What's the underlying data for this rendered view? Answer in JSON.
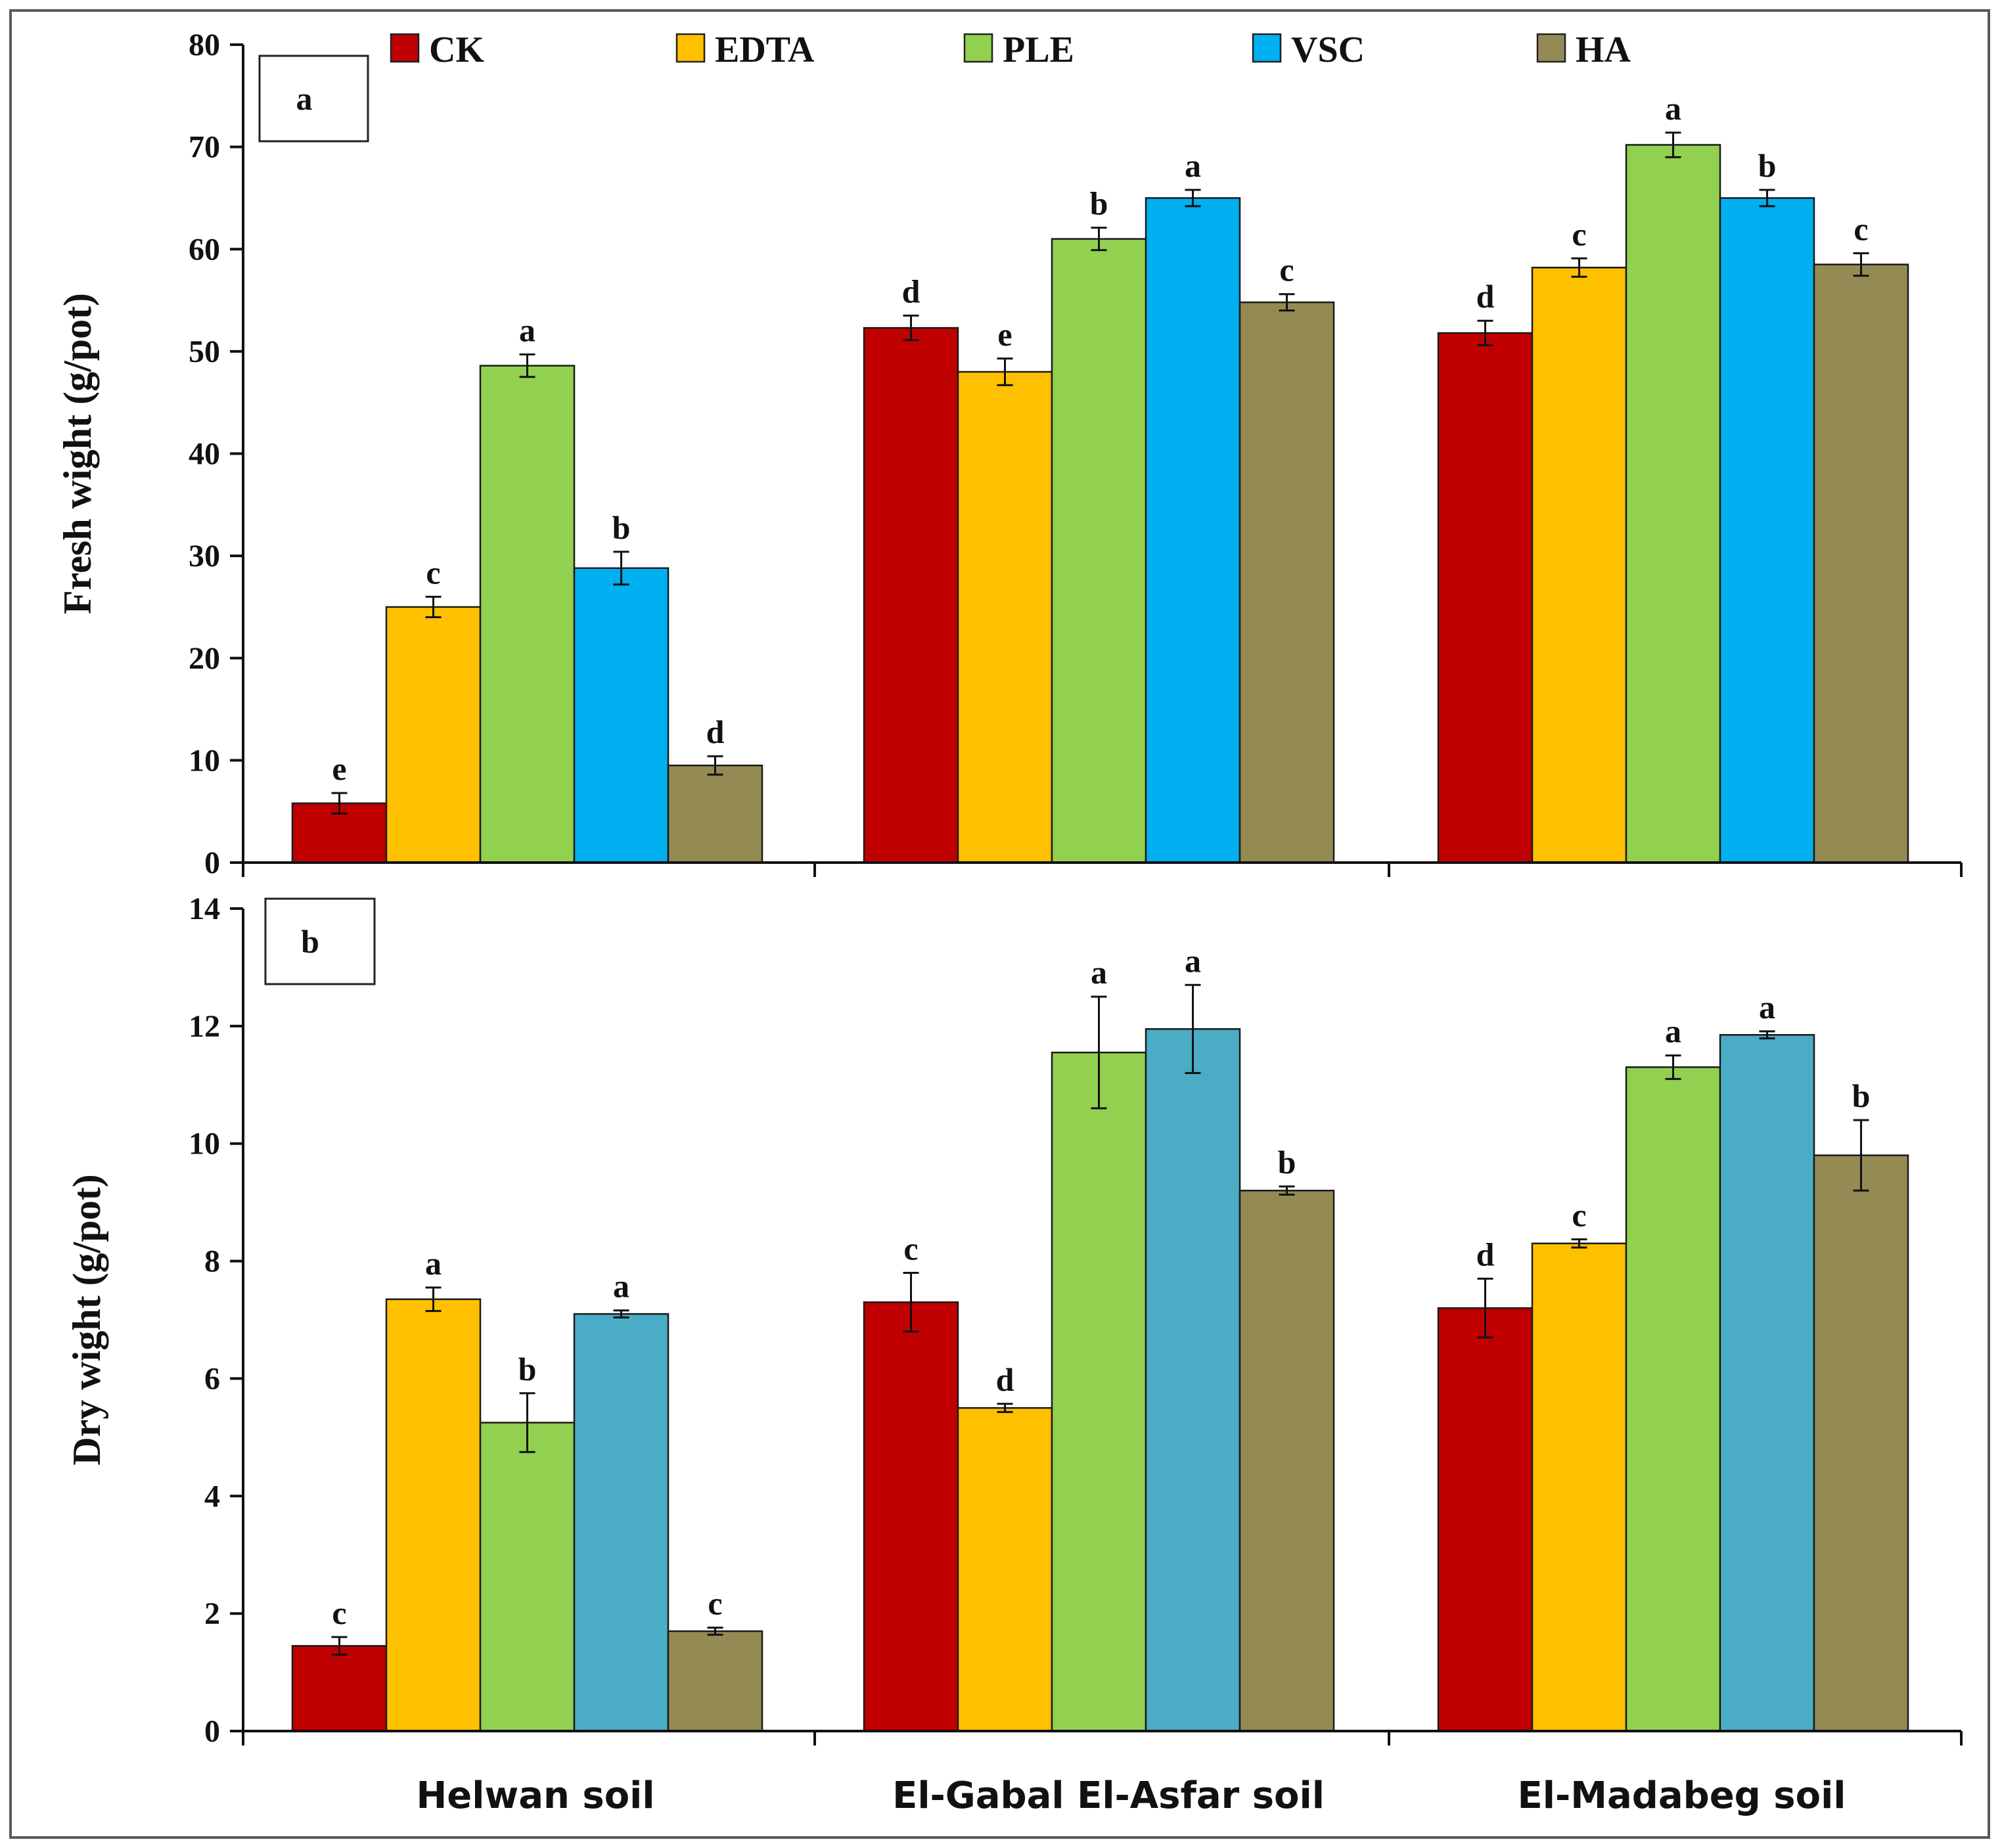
{
  "colors": {
    "CK": "#c00000",
    "EDTA": "#ffc000",
    "PLE": "#92d050",
    "VSC": "#00b0f0",
    "VSC_dry": "#4bacc6",
    "HA": "#948a54"
  },
  "chart_data": [
    {
      "type": "bar",
      "panel_label": "a",
      "ylabel": "Fresh wight (g/pot)",
      "ylim": [
        0,
        80
      ],
      "yticks": [
        "0",
        "10",
        "20",
        "30",
        "40",
        "50",
        "60",
        "70",
        "80"
      ],
      "categories": [
        "Helwan soil",
        "El-Gabal El-Asfar  soil",
        "El-Madabeg soil"
      ],
      "legend": [
        "CK",
        "EDTA",
        "PLE",
        "VSC",
        "HA"
      ],
      "series": [
        {
          "name": "CK",
          "values": [
            5.8,
            52.3,
            51.8
          ],
          "errors": [
            1.0,
            1.2,
            1.2
          ],
          "letters": [
            "e",
            "d",
            "d"
          ]
        },
        {
          "name": "EDTA",
          "values": [
            25.0,
            48.0,
            58.2
          ],
          "errors": [
            1.0,
            1.3,
            0.9
          ],
          "letters": [
            "c",
            "e",
            "c"
          ]
        },
        {
          "name": "PLE",
          "values": [
            48.6,
            61.0,
            70.2
          ],
          "errors": [
            1.1,
            1.1,
            1.2
          ],
          "letters": [
            "a",
            "b",
            "a"
          ]
        },
        {
          "name": "VSC",
          "values": [
            28.8,
            65.0,
            65.0
          ],
          "errors": [
            1.6,
            0.8,
            0.8
          ],
          "letters": [
            "b",
            "a",
            "b"
          ]
        },
        {
          "name": "HA",
          "values": [
            9.5,
            54.8,
            58.5
          ],
          "errors": [
            0.9,
            0.8,
            1.1
          ],
          "letters": [
            "d",
            "c",
            "c"
          ]
        }
      ]
    },
    {
      "type": "bar",
      "panel_label": "b",
      "ylabel": "Dry wight (g/pot)",
      "ylim": [
        0,
        14
      ],
      "yticks": [
        "0",
        "2",
        "4",
        "6",
        "8",
        "10",
        "12",
        "14"
      ],
      "categories": [
        "Helwan soil",
        "El-Gabal El-Asfar  soil",
        "El-Madabeg soil"
      ],
      "series": [
        {
          "name": "CK",
          "values": [
            1.45,
            7.3,
            7.2
          ],
          "errors": [
            0.15,
            0.5,
            0.5
          ],
          "letters": [
            "c",
            "c",
            "d"
          ]
        },
        {
          "name": "EDTA",
          "values": [
            7.35,
            5.5,
            8.3
          ],
          "errors": [
            0.2,
            0.07,
            0.07
          ],
          "letters": [
            "a",
            "d",
            "c"
          ]
        },
        {
          "name": "PLE",
          "values": [
            5.25,
            11.55,
            11.3
          ],
          "errors": [
            0.5,
            0.95,
            0.2
          ],
          "letters": [
            "b",
            "a",
            "a"
          ]
        },
        {
          "name": "VSC",
          "values": [
            7.1,
            11.95,
            11.85
          ],
          "errors": [
            0.06,
            0.75,
            0.06
          ],
          "letters": [
            "a",
            "a",
            "a"
          ]
        },
        {
          "name": "HA",
          "values": [
            1.7,
            9.2,
            9.8
          ],
          "errors": [
            0.06,
            0.07,
            0.6
          ],
          "letters": [
            "c",
            "b",
            "b"
          ]
        }
      ]
    }
  ]
}
